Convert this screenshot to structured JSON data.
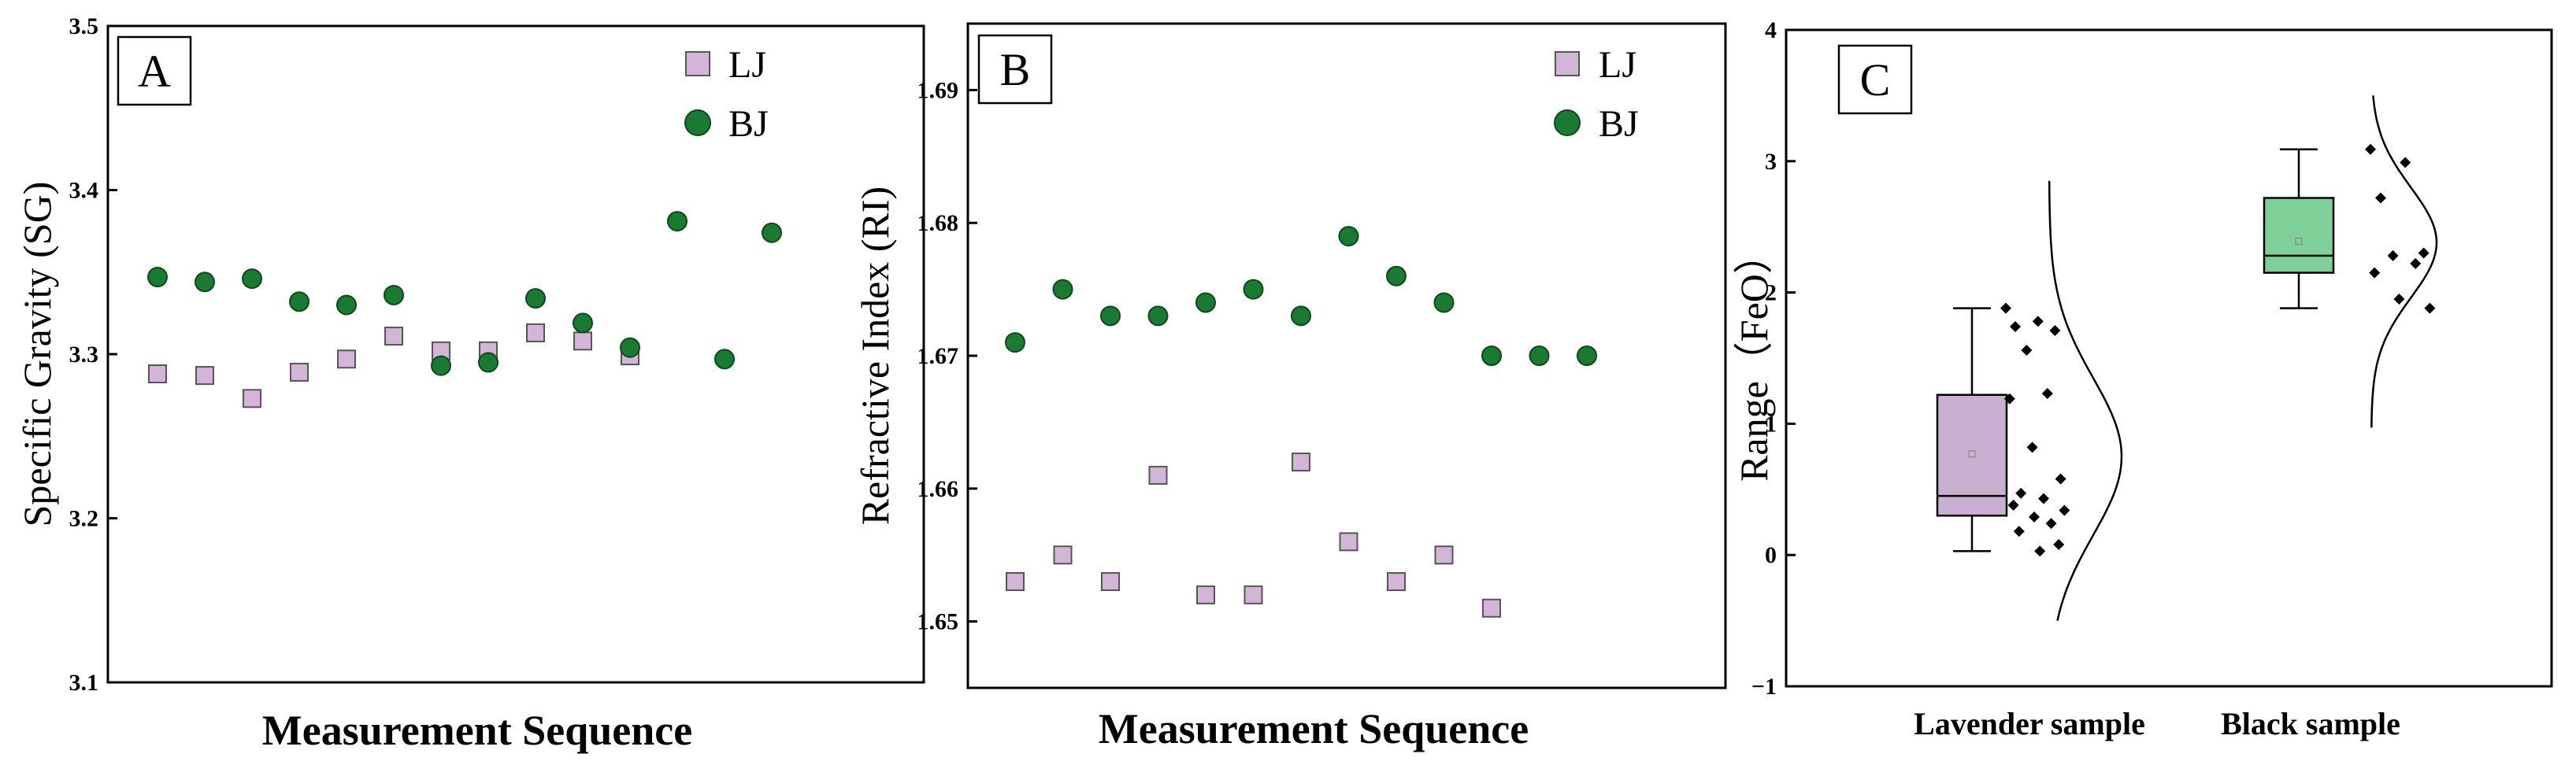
{
  "colors": {
    "lj": "#d3b5d7",
    "bj": "#1a7a32",
    "lavender_box": "#c9afd0",
    "black_box": "#7fcf98",
    "axis": "#000000"
  },
  "chart_data": [
    {
      "type": "scatter",
      "panel": "A",
      "xlabel": "Measurement Sequence",
      "ylabel": "Specific Gravity (SG)",
      "ylim": [
        3.1,
        3.5
      ],
      "yticks": [
        "3.1",
        "3.2",
        "3.3",
        "3.4",
        "3.5"
      ],
      "legend": "top-right",
      "series": [
        {
          "name": "LJ",
          "marker": "square",
          "x": [
            1,
            2,
            3,
            4,
            5,
            6,
            7,
            8,
            9,
            10,
            11
          ],
          "values": [
            3.288,
            3.287,
            3.273,
            3.289,
            3.297,
            3.311,
            3.302,
            3.302,
            3.313,
            3.308,
            3.299
          ]
        },
        {
          "name": "BJ",
          "marker": "circle",
          "x": [
            1,
            2,
            3,
            4,
            5,
            6,
            7,
            8,
            9,
            10,
            11,
            12,
            13,
            14
          ],
          "values": [
            3.347,
            3.344,
            3.346,
            3.332,
            3.33,
            3.336,
            3.293,
            3.295,
            3.334,
            3.319,
            3.304,
            3.381,
            3.297,
            3.374
          ]
        }
      ]
    },
    {
      "type": "scatter",
      "panel": "B",
      "xlabel": "Measurement Sequence",
      "ylabel": "Refractive Index (RI)",
      "ylim": [
        1.645,
        1.695
      ],
      "yticks": [
        "1.65",
        "1.66",
        "1.67",
        "1.68",
        "1.69"
      ],
      "legend": "top-right",
      "series": [
        {
          "name": "LJ",
          "marker": "square",
          "x": [
            1,
            2,
            3,
            4,
            5,
            6,
            7,
            8,
            9,
            10,
            11
          ],
          "values": [
            1.653,
            1.655,
            1.653,
            1.661,
            1.652,
            1.652,
            1.662,
            1.656,
            1.653,
            1.655,
            1.651
          ]
        },
        {
          "name": "BJ",
          "marker": "circle",
          "x": [
            1,
            2,
            3,
            4,
            5,
            6,
            7,
            8,
            9,
            10,
            11,
            12,
            13
          ],
          "values": [
            1.671,
            1.675,
            1.673,
            1.673,
            1.674,
            1.675,
            1.673,
            1.679,
            1.676,
            1.674,
            1.67,
            1.67,
            1.67
          ]
        }
      ]
    },
    {
      "type": "box",
      "panel": "C",
      "ylabel": "Range（FeO）",
      "ylim": [
        -1,
        4
      ],
      "yticks": [
        "−1",
        "0",
        "1",
        "2",
        "3",
        "4"
      ],
      "categories": [
        "Lavender sample",
        "Black sample"
      ],
      "boxes": [
        {
          "name": "Lavender sample",
          "min": 0.03,
          "q1": 0.3,
          "median": 0.45,
          "q3": 1.22,
          "max": 1.88,
          "mean": 0.77,
          "points": [
            1.88,
            1.78,
            1.74,
            1.71,
            1.56,
            1.23,
            1.19,
            0.82,
            0.58,
            0.47,
            0.43,
            0.38,
            0.34,
            0.29,
            0.24,
            0.18,
            0.08,
            0.03
          ],
          "dist": {
            "mean": 0.75,
            "sd": 0.6,
            "min": -0.5,
            "max": 2.85
          }
        },
        {
          "name": "Black sample",
          "min": 1.88,
          "q1": 2.15,
          "median": 2.28,
          "q3": 2.72,
          "max": 3.09,
          "mean": 2.39,
          "points": [
            3.09,
            2.99,
            2.72,
            2.3,
            2.28,
            2.22,
            2.15,
            1.95,
            1.88
          ],
          "dist": {
            "mean": 2.38,
            "sd": 0.42,
            "min": 0.97,
            "max": 3.5
          }
        }
      ]
    }
  ]
}
